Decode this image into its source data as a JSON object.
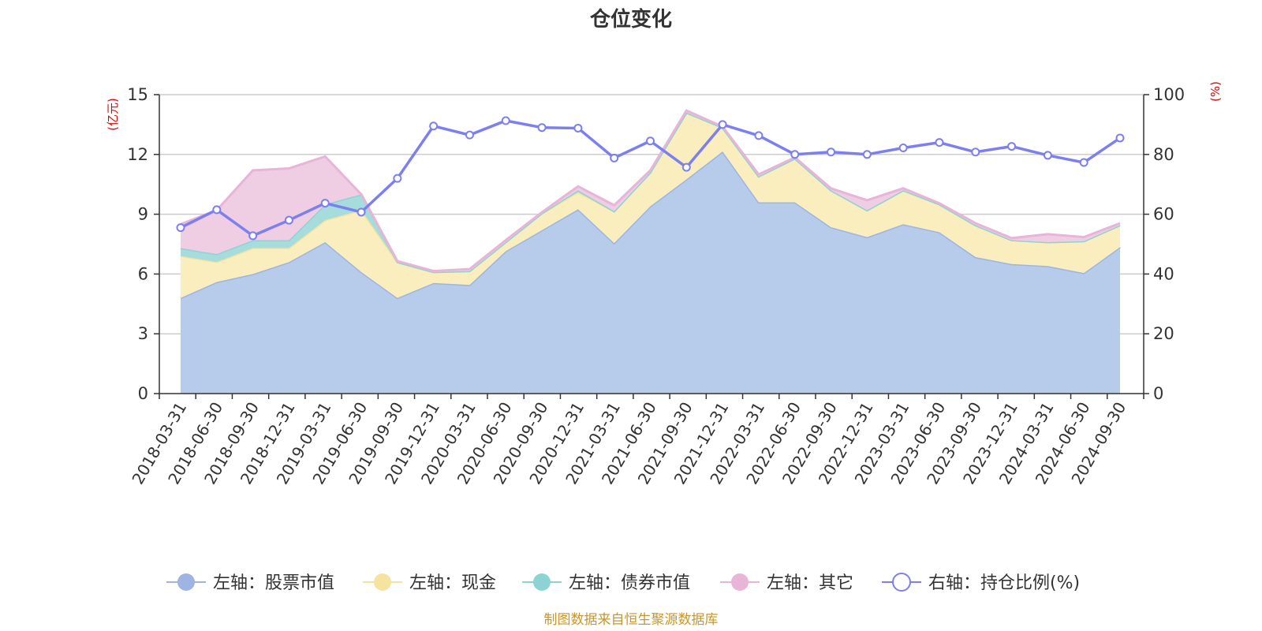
{
  "chart_data": {
    "type": "area",
    "title": "仓位变化",
    "source_note": "制图数据来自恒生聚源数据库",
    "left_axis": {
      "unit": "(亿元)",
      "min": 0,
      "max": 15,
      "ticks": [
        "0",
        "3",
        "6",
        "9",
        "12",
        "15"
      ]
    },
    "right_axis": {
      "unit": "(%)",
      "min": 0,
      "max": 100,
      "ticks": [
        "0",
        "20",
        "40",
        "60",
        "80",
        "100"
      ]
    },
    "categories": [
      "2018-03-31",
      "2018-06-30",
      "2018-09-30",
      "2018-12-31",
      "2019-03-31",
      "2019-06-30",
      "2019-09-30",
      "2019-12-31",
      "2020-03-31",
      "2020-06-30",
      "2020-09-30",
      "2020-12-31",
      "2021-03-31",
      "2021-06-30",
      "2021-09-30",
      "2021-12-31",
      "2022-03-31",
      "2022-06-30",
      "2022-09-30",
      "2022-12-31",
      "2023-03-31",
      "2023-06-30",
      "2023-09-30",
      "2023-12-31",
      "2024-03-31",
      "2024-06-30",
      "2024-09-30"
    ],
    "stacked_series": [
      {
        "name": "左轴：股票市值",
        "color": "#9db5e0",
        "fill": "#b7cbea",
        "values": [
          4.8,
          5.6,
          6.0,
          6.6,
          7.6,
          6.1,
          4.8,
          5.55,
          5.45,
          7.15,
          8.2,
          9.25,
          7.55,
          9.4,
          10.75,
          12.15,
          9.6,
          9.6,
          8.35,
          7.85,
          8.5,
          8.1,
          6.85,
          6.5,
          6.4,
          6.05,
          7.35
        ]
      },
      {
        "name": "左轴：现金",
        "color": "#f7e3a0",
        "fill": "#faeebe",
        "values": [
          2.1,
          1.0,
          1.3,
          0.7,
          1.1,
          3.1,
          1.8,
          0.55,
          0.7,
          0.45,
          0.85,
          0.85,
          1.6,
          1.7,
          3.35,
          1.2,
          1.3,
          2.2,
          1.85,
          1.35,
          1.7,
          1.4,
          1.6,
          1.2,
          1.2,
          1.6,
          1.1
        ]
      },
      {
        "name": "左轴：债券市值",
        "color": "#8dd3d3",
        "fill": "#a6dcdc",
        "values": [
          0.4,
          0.4,
          0.4,
          0.4,
          0.8,
          0.8,
          0,
          0,
          0,
          0,
          0,
          0.1,
          0,
          0,
          0,
          0,
          0,
          0,
          0,
          0,
          0,
          0,
          0,
          0,
          0,
          0,
          0
        ]
      },
      {
        "name": "左轴：其它",
        "color": "#e8b4d8",
        "fill": "#efcde3",
        "values": [
          1.2,
          2.2,
          3.5,
          3.6,
          2.4,
          0,
          0.05,
          0.05,
          0.1,
          0.1,
          0.05,
          0.2,
          0.3,
          0.1,
          0.1,
          0.05,
          0.1,
          0.05,
          0.1,
          0.5,
          0.1,
          0.05,
          0.1,
          0.1,
          0.4,
          0.2,
          0.1
        ]
      }
    ],
    "line_series": {
      "name": "右轴：持仓比例(%)",
      "color": "#7b7ff0",
      "values": [
        55.5,
        61.5,
        52.8,
        58,
        63.7,
        60.7,
        72,
        89.5,
        86.5,
        91.3,
        89,
        88.8,
        78.8,
        84.5,
        75.7,
        90,
        86.3,
        80,
        80.8,
        80,
        82.2,
        84,
        80.8,
        82.7,
        79.7,
        77.3,
        85.5
      ]
    },
    "legend_position": "bottom"
  }
}
